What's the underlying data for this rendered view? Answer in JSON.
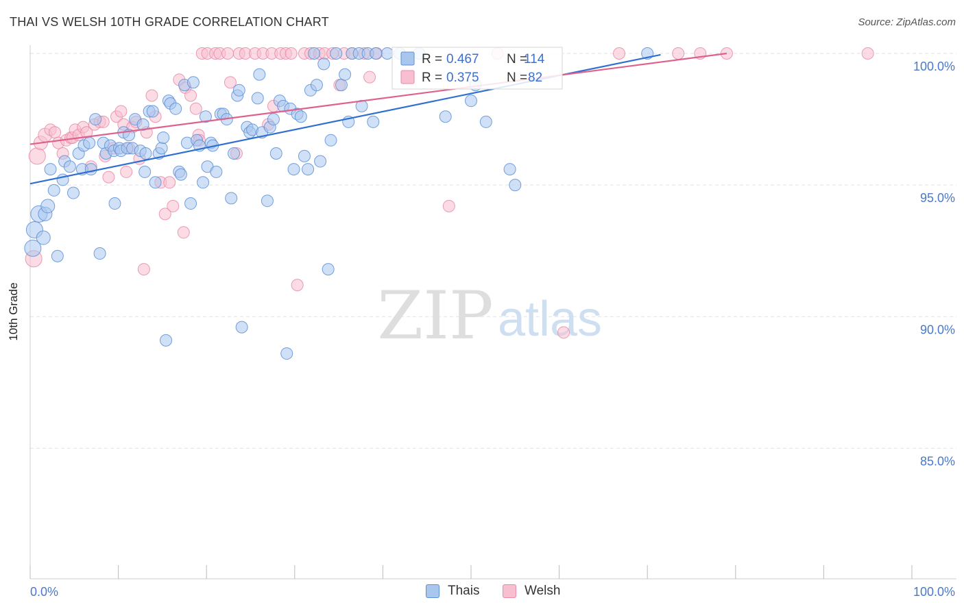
{
  "title": "THAI VS WELSH 10TH GRADE CORRELATION CHART",
  "source": "Source: ZipAtlas.com",
  "watermark": {
    "zip": "ZIP",
    "atlas": "atlas"
  },
  "legend": {
    "r_label": "R =",
    "n_label": "N =",
    "rows": [
      {
        "name": "Thais",
        "r": "0.467",
        "n": "114"
      },
      {
        "name": "Welsh",
        "r": "0.375",
        "n": "82"
      }
    ]
  },
  "colors": {
    "thais_fill": "#a9c7ee",
    "thais_stroke": "#5b8fd6",
    "thais_line": "#2f6fd0",
    "welsh_fill": "#f7bfd0",
    "welsh_stroke": "#e98aa8",
    "welsh_line": "#e0608c",
    "tick_text": "#4a78c9",
    "grid": "#e2e2e2"
  },
  "chart_data": {
    "type": "scatter",
    "title": "THAI VS WELSH 10TH GRADE CORRELATION CHART",
    "xlabel": "",
    "ylabel": "10th Grade",
    "xlim": [
      0,
      100
    ],
    "ylim": [
      80.5,
      100.5
    ],
    "x_tick_labels": [
      "0.0%",
      "100.0%"
    ],
    "y_ticks": [
      {
        "value": 85,
        "label": "85.0%"
      },
      {
        "value": 90,
        "label": "90.0%"
      },
      {
        "value": 95,
        "label": "95.0%"
      },
      {
        "value": 100,
        "label": "100.0%"
      }
    ],
    "grid": "horizontal dashed",
    "legend_position": "top-center",
    "series": [
      {
        "name": "Thais",
        "r": 0.467,
        "n": 114,
        "trend": {
          "x0": 0,
          "y0": 95.05,
          "x1": 71.5,
          "y1": 99.95
        },
        "points": [
          [
            0.3,
            92.6
          ],
          [
            0.5,
            93.3
          ],
          [
            1.0,
            93.9
          ],
          [
            1.5,
            93.0
          ],
          [
            1.7,
            93.9
          ],
          [
            2.0,
            94.2
          ],
          [
            2.3,
            95.6
          ],
          [
            2.7,
            94.8
          ],
          [
            3.1,
            92.3
          ],
          [
            3.7,
            95.2
          ],
          [
            3.9,
            95.9
          ],
          [
            4.5,
            95.7
          ],
          [
            4.9,
            94.7
          ],
          [
            5.5,
            96.2
          ],
          [
            5.9,
            95.6
          ],
          [
            6.1,
            96.5
          ],
          [
            6.7,
            96.6
          ],
          [
            6.9,
            95.6
          ],
          [
            7.4,
            97.5
          ],
          [
            7.9,
            92.4
          ],
          [
            8.3,
            96.6
          ],
          [
            8.6,
            96.2
          ],
          [
            9.1,
            96.5
          ],
          [
            9.5,
            96.3
          ],
          [
            9.6,
            94.3
          ],
          [
            10.1,
            96.4
          ],
          [
            10.3,
            96.3
          ],
          [
            10.6,
            97.0
          ],
          [
            11.0,
            96.4
          ],
          [
            11.2,
            96.9
          ],
          [
            11.6,
            96.4
          ],
          [
            11.9,
            97.5
          ],
          [
            12.5,
            96.3
          ],
          [
            12.8,
            97.3
          ],
          [
            13.0,
            95.5
          ],
          [
            13.1,
            96.2
          ],
          [
            13.5,
            97.8
          ],
          [
            13.9,
            97.8
          ],
          [
            14.2,
            95.1
          ],
          [
            14.6,
            96.2
          ],
          [
            14.9,
            96.4
          ],
          [
            15.1,
            96.8
          ],
          [
            15.4,
            89.1
          ],
          [
            15.7,
            98.2
          ],
          [
            15.9,
            98.1
          ],
          [
            16.5,
            97.9
          ],
          [
            16.9,
            95.5
          ],
          [
            17.1,
            95.4
          ],
          [
            17.5,
            98.8
          ],
          [
            17.8,
            96.6
          ],
          [
            18.2,
            94.3
          ],
          [
            18.5,
            98.9
          ],
          [
            18.9,
            96.7
          ],
          [
            19.2,
            96.5
          ],
          [
            19.6,
            95.1
          ],
          [
            19.9,
            97.6
          ],
          [
            20.1,
            95.7
          ],
          [
            20.5,
            96.6
          ],
          [
            20.7,
            96.5
          ],
          [
            21.1,
            95.5
          ],
          [
            21.6,
            97.7
          ],
          [
            21.9,
            97.7
          ],
          [
            22.3,
            97.5
          ],
          [
            22.8,
            94.5
          ],
          [
            23.1,
            96.2
          ],
          [
            23.5,
            98.4
          ],
          [
            23.7,
            98.6
          ],
          [
            24.0,
            89.6
          ],
          [
            24.6,
            97.2
          ],
          [
            24.9,
            97.0
          ],
          [
            25.2,
            97.1
          ],
          [
            25.8,
            98.3
          ],
          [
            26.0,
            99.2
          ],
          [
            26.3,
            97.0
          ],
          [
            26.9,
            94.4
          ],
          [
            27.2,
            97.2
          ],
          [
            27.6,
            97.5
          ],
          [
            27.9,
            96.2
          ],
          [
            28.3,
            98.2
          ],
          [
            28.7,
            98.0
          ],
          [
            29.1,
            88.6
          ],
          [
            29.5,
            97.9
          ],
          [
            29.9,
            95.6
          ],
          [
            30.3,
            97.7
          ],
          [
            30.7,
            97.6
          ],
          [
            31.1,
            96.1
          ],
          [
            31.5,
            95.6
          ],
          [
            31.8,
            98.6
          ],
          [
            32.2,
            100.0
          ],
          [
            32.5,
            98.8
          ],
          [
            32.9,
            95.9
          ],
          [
            33.3,
            99.6
          ],
          [
            33.8,
            91.8
          ],
          [
            34.1,
            96.7
          ],
          [
            34.7,
            100.0
          ],
          [
            35.3,
            98.8
          ],
          [
            35.7,
            99.2
          ],
          [
            36.1,
            97.4
          ],
          [
            36.5,
            100.0
          ],
          [
            37.3,
            100.0
          ],
          [
            37.6,
            98.0
          ],
          [
            38.3,
            100.0
          ],
          [
            38.9,
            97.4
          ],
          [
            39.2,
            100.0
          ],
          [
            40.5,
            100.0
          ],
          [
            41.9,
            100.0
          ],
          [
            44.1,
            100.0
          ],
          [
            47.1,
            97.6
          ],
          [
            50.0,
            98.2
          ],
          [
            50.5,
            98.8
          ],
          [
            51.7,
            97.4
          ],
          [
            54.4,
            95.6
          ],
          [
            55.0,
            95.0
          ],
          [
            70.0,
            100.0
          ]
        ]
      },
      {
        "name": "Welsh",
        "r": 0.375,
        "n": 82,
        "trend": {
          "x0": 0,
          "y0": 96.55,
          "x1": 79,
          "y1": 100.0
        },
        "points": [
          [
            0.4,
            92.2
          ],
          [
            0.8,
            96.1
          ],
          [
            1.2,
            96.6
          ],
          [
            1.7,
            96.9
          ],
          [
            2.3,
            97.1
          ],
          [
            2.8,
            97.0
          ],
          [
            3.2,
            96.6
          ],
          [
            3.7,
            96.2
          ],
          [
            4.1,
            96.7
          ],
          [
            4.6,
            96.8
          ],
          [
            4.8,
            96.8
          ],
          [
            5.1,
            97.1
          ],
          [
            5.5,
            96.9
          ],
          [
            6.0,
            97.2
          ],
          [
            6.4,
            97.0
          ],
          [
            6.9,
            95.7
          ],
          [
            7.3,
            97.3
          ],
          [
            7.9,
            97.4
          ],
          [
            8.3,
            97.4
          ],
          [
            8.5,
            96.1
          ],
          [
            8.9,
            95.3
          ],
          [
            9.4,
            96.4
          ],
          [
            9.8,
            97.6
          ],
          [
            10.3,
            97.8
          ],
          [
            10.6,
            97.3
          ],
          [
            10.9,
            95.5
          ],
          [
            11.2,
            96.4
          ],
          [
            11.6,
            97.2
          ],
          [
            12.0,
            97.4
          ],
          [
            12.4,
            96.0
          ],
          [
            12.9,
            91.8
          ],
          [
            13.2,
            97.0
          ],
          [
            13.8,
            98.4
          ],
          [
            14.2,
            97.6
          ],
          [
            14.8,
            95.1
          ],
          [
            15.3,
            93.9
          ],
          [
            15.8,
            95.1
          ],
          [
            16.2,
            94.2
          ],
          [
            16.9,
            99.0
          ],
          [
            17.4,
            93.2
          ],
          [
            17.6,
            98.7
          ],
          [
            18.2,
            98.4
          ],
          [
            18.8,
            97.9
          ],
          [
            19.1,
            96.9
          ],
          [
            19.2,
            96.7
          ],
          [
            19.5,
            100.0
          ],
          [
            20.1,
            100.0
          ],
          [
            21.0,
            100.0
          ],
          [
            21.5,
            100.0
          ],
          [
            22.4,
            100.0
          ],
          [
            22.7,
            98.9
          ],
          [
            23.4,
            96.2
          ],
          [
            23.7,
            100.0
          ],
          [
            24.4,
            100.0
          ],
          [
            25.5,
            100.0
          ],
          [
            26.4,
            100.0
          ],
          [
            27.0,
            97.3
          ],
          [
            27.4,
            100.0
          ],
          [
            27.6,
            98.0
          ],
          [
            28.4,
            100.0
          ],
          [
            29.0,
            100.0
          ],
          [
            29.6,
            100.0
          ],
          [
            30.3,
            91.2
          ],
          [
            31.1,
            100.0
          ],
          [
            31.8,
            100.0
          ],
          [
            32.8,
            100.0
          ],
          [
            33.4,
            100.0
          ],
          [
            34.3,
            100.0
          ],
          [
            35.1,
            98.8
          ],
          [
            35.6,
            100.0
          ],
          [
            36.5,
            100.0
          ],
          [
            37.9,
            100.0
          ],
          [
            38.5,
            99.1
          ],
          [
            39.3,
            100.0
          ],
          [
            47.5,
            94.2
          ],
          [
            53.0,
            100.0
          ],
          [
            60.5,
            89.4
          ],
          [
            66.8,
            100.0
          ],
          [
            73.5,
            100.0
          ],
          [
            76.0,
            100.0
          ],
          [
            79.0,
            100.0
          ],
          [
            95.0,
            100.0
          ]
        ]
      }
    ]
  }
}
